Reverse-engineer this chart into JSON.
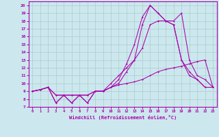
{
  "xlabel": "Windchill (Refroidissement éolien,°C)",
  "xlim": [
    -0.5,
    23.5
  ],
  "ylim": [
    7,
    20.5
  ],
  "xticks": [
    0,
    1,
    2,
    3,
    4,
    5,
    6,
    7,
    8,
    9,
    10,
    11,
    12,
    13,
    14,
    15,
    16,
    17,
    18,
    19,
    20,
    21,
    22,
    23
  ],
  "yticks": [
    7,
    8,
    9,
    10,
    11,
    12,
    13,
    14,
    15,
    16,
    17,
    18,
    19,
    20
  ],
  "background_color": "#cce8ee",
  "grid_color": "#aacccc",
  "line_color": "#aa00aa",
  "line1_x": [
    0,
    1,
    2,
    3,
    4,
    5,
    6,
    7,
    8,
    9,
    10,
    11,
    12,
    13,
    14,
    15,
    16,
    17,
    18,
    19,
    20,
    21,
    22,
    23
  ],
  "line1_y": [
    9.0,
    9.2,
    9.5,
    8.5,
    8.5,
    8.5,
    8.5,
    8.5,
    9.0,
    9.0,
    9.5,
    9.8,
    10.0,
    10.2,
    10.5,
    11.0,
    11.5,
    11.8,
    12.0,
    12.2,
    12.5,
    12.8,
    13.0,
    9.5
  ],
  "line2_x": [
    0,
    1,
    2,
    3,
    4,
    5,
    6,
    7,
    8,
    9,
    10,
    11,
    12,
    13,
    14,
    15,
    16,
    17,
    18,
    19,
    20,
    21,
    22,
    23
  ],
  "line2_y": [
    9.0,
    9.2,
    9.5,
    8.5,
    8.5,
    8.5,
    8.5,
    8.5,
    9.0,
    9.0,
    10.0,
    11.0,
    12.0,
    13.0,
    14.5,
    17.5,
    18.0,
    18.0,
    17.5,
    13.0,
    11.5,
    10.5,
    9.5,
    9.5
  ],
  "line3_x": [
    0,
    1,
    2,
    3,
    4,
    5,
    6,
    7,
    8,
    9,
    10,
    11,
    12,
    13,
    14,
    15,
    16,
    17,
    18,
    19,
    20,
    21,
    22,
    23
  ],
  "line3_y": [
    9.0,
    9.2,
    9.5,
    7.5,
    8.5,
    7.5,
    8.5,
    7.5,
    9.0,
    9.0,
    9.5,
    10.0,
    11.5,
    13.0,
    17.5,
    20.0,
    19.0,
    18.0,
    18.0,
    19.0,
    13.0,
    11.0,
    10.5,
    9.5
  ],
  "line4_x": [
    0,
    1,
    2,
    3,
    4,
    5,
    6,
    7,
    8,
    9,
    10,
    11,
    12,
    13,
    14,
    15,
    16,
    17,
    18,
    19,
    20,
    21,
    22,
    23
  ],
  "line4_y": [
    9.0,
    9.2,
    9.5,
    7.5,
    8.5,
    7.5,
    8.5,
    7.5,
    9.0,
    9.0,
    9.5,
    10.5,
    12.5,
    15.0,
    18.5,
    20.0,
    19.0,
    18.0,
    17.5,
    13.0,
    11.0,
    10.5,
    9.5,
    9.5
  ]
}
